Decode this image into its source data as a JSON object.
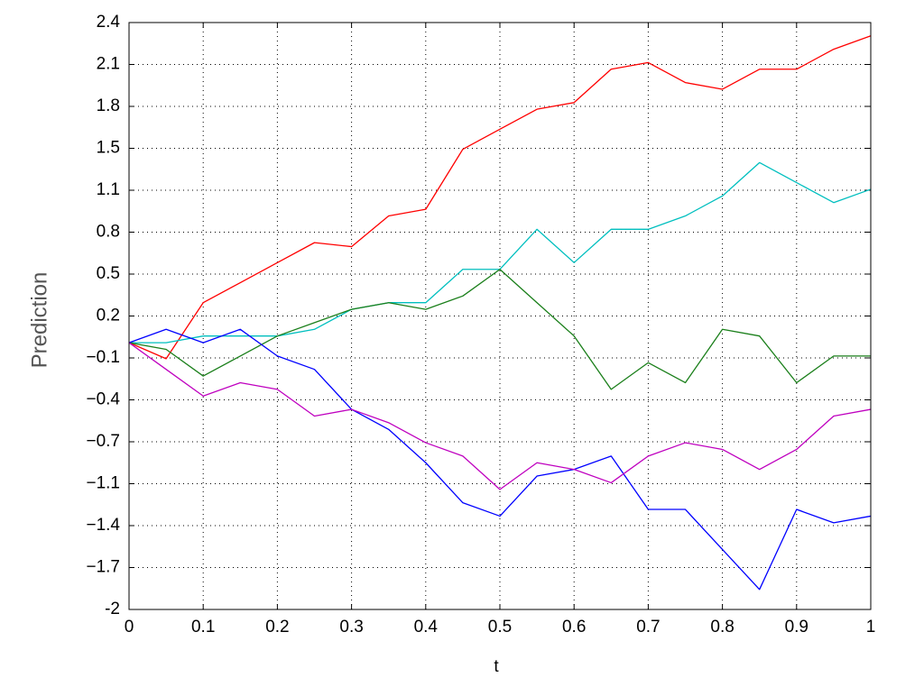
{
  "chart_data": {
    "type": "line",
    "xlabel": "t",
    "ylabel": "Prediction",
    "x": [
      0,
      0.05,
      0.1,
      0.15,
      0.2,
      0.25,
      0.3,
      0.35,
      0.4,
      0.45,
      0.5,
      0.55,
      0.6,
      0.65,
      0.7,
      0.75,
      0.8,
      0.85,
      0.9,
      0.95,
      1
    ],
    "series": [
      {
        "color": "#ff0000",
        "values": [
          0,
          -0.12,
          0.3,
          0.45,
          0.6,
          0.75,
          0.72,
          0.95,
          1.0,
          1.45,
          1.6,
          1.75,
          1.8,
          2.05,
          2.1,
          1.95,
          1.9,
          2.05,
          2.05,
          2.2,
          2.3
        ]
      },
      {
        "color": "#00bfbf",
        "values": [
          0,
          0.0,
          0.05,
          0.05,
          0.05,
          0.1,
          0.25,
          0.3,
          0.3,
          0.55,
          0.55,
          0.85,
          0.6,
          0.85,
          0.85,
          0.95,
          1.1,
          1.35,
          1.2,
          1.05,
          1.15
        ]
      },
      {
        "color": "#1a7f1a",
        "values": [
          0,
          -0.05,
          -0.25,
          -0.1,
          0.05,
          0.15,
          0.25,
          0.3,
          0.25,
          0.35,
          0.55,
          0.3,
          0.05,
          -0.35,
          -0.15,
          -0.3,
          0.1,
          0.05,
          -0.3,
          -0.1,
          -0.1
        ]
      },
      {
        "color": "#0000ff",
        "values": [
          0,
          0.1,
          0,
          0.1,
          -0.1,
          -0.2,
          -0.5,
          -0.65,
          -0.9,
          -1.2,
          -1.3,
          -1.0,
          -0.95,
          -0.85,
          -1.25,
          -1.25,
          -1.55,
          -1.85,
          -1.25,
          -1.35,
          -1.3
        ]
      },
      {
        "color": "#bf00bf",
        "values": [
          0,
          -0.2,
          -0.4,
          -0.3,
          -0.35,
          -0.55,
          -0.5,
          -0.6,
          -0.75,
          -0.85,
          -1.1,
          -0.9,
          -0.95,
          -1.05,
          -0.85,
          -0.75,
          -0.8,
          -0.95,
          -0.8,
          -0.55,
          -0.5
        ]
      }
    ],
    "xlim": [
      0,
      1
    ],
    "xticks": [
      0,
      0.1,
      0.2,
      0.3,
      0.4,
      0.5,
      0.6,
      0.7,
      0.8,
      0.9,
      1
    ],
    "ylim": [
      -2,
      2.4
    ],
    "yticks": [
      -2,
      {
        "value": -1.6857,
        "label": "−1.7"
      },
      {
        "value": -1.3714,
        "label": "−1.4"
      },
      {
        "value": -1.0571,
        "label": "−1.1"
      },
      {
        "value": -0.7429,
        "label": "−0.7"
      },
      {
        "value": -0.4286,
        "label": "−0.4"
      },
      {
        "value": -0.1143,
        "label": "−0.1"
      },
      0.2,
      {
        "value": 0.5143,
        "label": "0.5"
      },
      {
        "value": 0.8286,
        "label": "0.8"
      },
      {
        "value": 1.1429,
        "label": "1.1"
      },
      {
        "value": 1.4571,
        "label": "1.5"
      },
      {
        "value": 1.7714,
        "label": "1.8"
      },
      {
        "value": 2.0857,
        "label": "2.1"
      },
      2.4
    ],
    "grid": true
  }
}
